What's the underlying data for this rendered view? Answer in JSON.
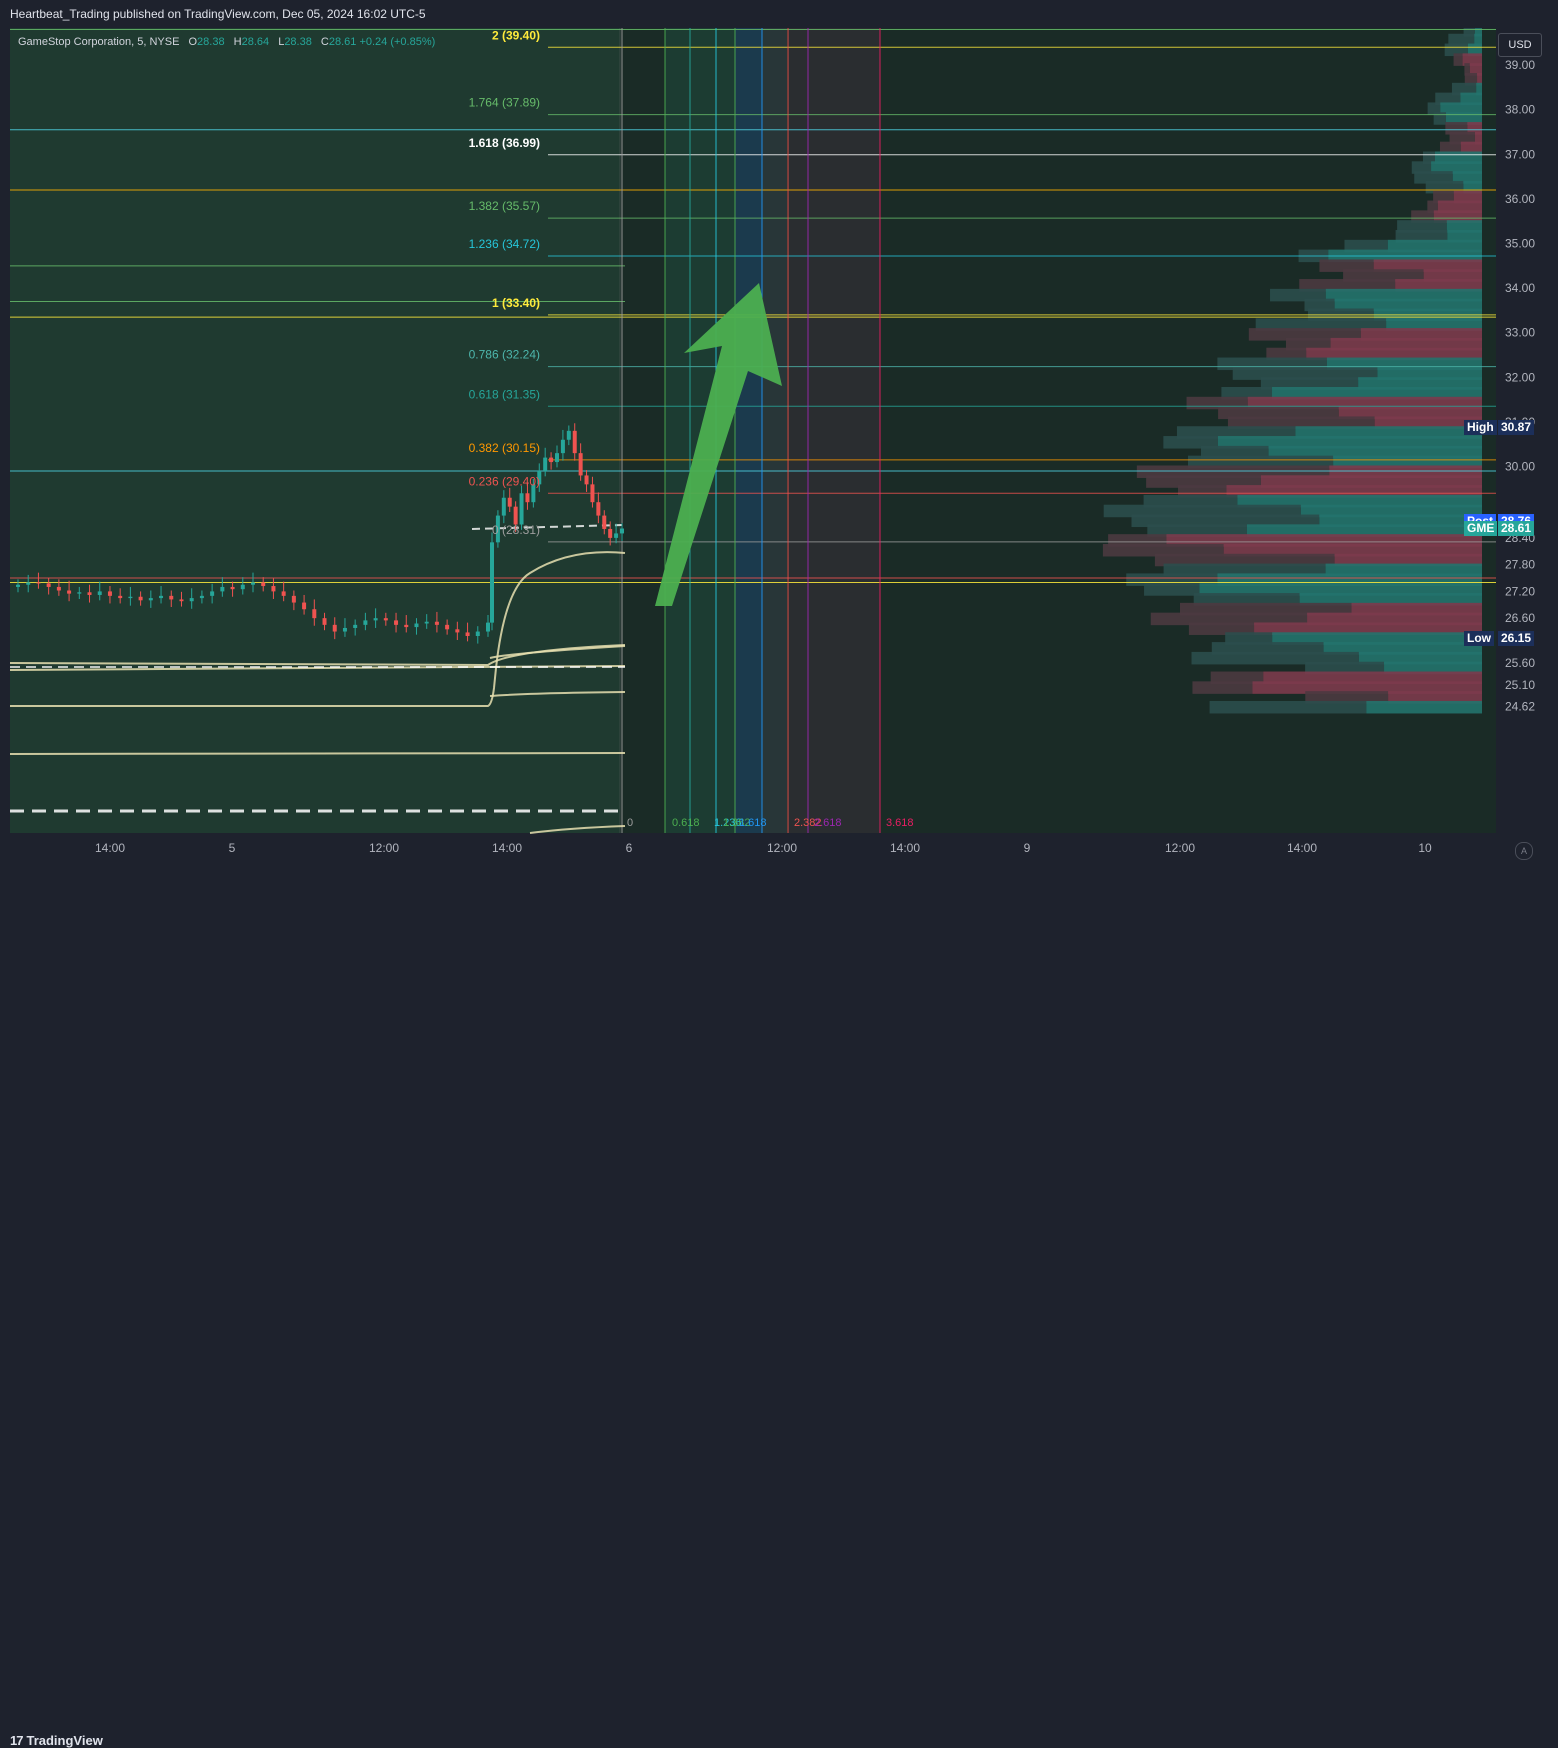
{
  "header": {
    "published": "Heartbeat_Trading published on TradingView.com, Dec 05, 2024 16:02 UTC-5"
  },
  "legend": {
    "symbol": "GameStop Corporation, 5, NYSE",
    "o_label": "O",
    "o_value": "28.38",
    "h_label": "H",
    "h_value": "28.64",
    "l_label": "L",
    "l_value": "28.38",
    "c_label": "C",
    "c_value": "28.61",
    "change": "+0.24 (+0.85%)"
  },
  "currency": "USD",
  "footer": {
    "brand": "TradingView"
  },
  "colors": {
    "background": "#1a2b26",
    "up": "#26a69a",
    "down": "#ef5350",
    "arrow": "#4caf50",
    "vwap": "#e8e0b0"
  },
  "chart_data": {
    "type": "candlestick",
    "symbol": "GME",
    "interval": "5",
    "x_ticks": [
      "14:00",
      "5",
      "12:00",
      "14:00",
      "6",
      "12:00",
      "14:00",
      "9",
      "12:00",
      "14:00",
      "10"
    ],
    "y_ticks": [
      39.0,
      38.0,
      37.0,
      36.0,
      35.0,
      34.0,
      33.0,
      32.0,
      31.0,
      30.0,
      28.4,
      27.8,
      27.2,
      26.6,
      25.6,
      25.1,
      24.62
    ],
    "ylim": [
      24.62,
      39.9
    ],
    "price_tags": [
      {
        "label": "High",
        "value": "30.87",
        "price": 30.87,
        "color": "#1c2f5a"
      },
      {
        "label": "Post",
        "value": "28.76",
        "price": 28.76,
        "color": "#2962ff"
      },
      {
        "label": "GME",
        "value": "28.61",
        "price": 28.61,
        "color": "#26a69a"
      },
      {
        "label": "Low",
        "value": "26.15",
        "price": 26.15,
        "color": "#1c2f5a"
      }
    ],
    "fib_extension": [
      {
        "text": "2 (39.40)",
        "price": 39.4,
        "color": "#ffeb3b",
        "bold": true
      },
      {
        "text": "1.764 (37.89)",
        "price": 37.89,
        "color": "#66bb6a",
        "bold": false
      },
      {
        "text": "1.618 (36.99)",
        "price": 36.99,
        "color": "#ffffff",
        "bold": true
      },
      {
        "text": "1.382 (35.57)",
        "price": 35.57,
        "color": "#66bb6a",
        "bold": false
      },
      {
        "text": "1.236 (34.72)",
        "price": 34.72,
        "color": "#26c6da",
        "bold": false
      },
      {
        "text": "1 (33.40)",
        "price": 33.4,
        "color": "#ffeb3b",
        "bold": true
      },
      {
        "text": "0.786 (32.24)",
        "price": 32.24,
        "color": "#4db6ac",
        "bold": false
      },
      {
        "text": "0.618 (31.35)",
        "price": 31.35,
        "color": "#26a69a",
        "bold": false
      },
      {
        "text": "0.382 (30.15)",
        "price": 30.15,
        "color": "#ff9800",
        "bold": false
      },
      {
        "text": "0.236 (29.40)",
        "price": 29.4,
        "color": "#ef5350",
        "bold": false
      },
      {
        "text": "0 (28.31)",
        "price": 28.31,
        "color": "#9e9e9e",
        "bold": false
      }
    ],
    "horizontal_levels": [
      {
        "price": 39.8,
        "color": "#66bb6a",
        "full": true
      },
      {
        "price": 37.55,
        "color": "#4dd0e1",
        "full": true
      },
      {
        "price": 36.2,
        "color": "#ffb300",
        "full": true
      },
      {
        "price": 34.5,
        "color": "#66bb6a",
        "full": false
      },
      {
        "price": 33.7,
        "color": "#66bb6a",
        "full": false
      },
      {
        "price": 33.35,
        "color": "#ffeb3b",
        "full": true
      },
      {
        "price": 29.9,
        "color": "#4dd0e1",
        "full": true
      },
      {
        "price": 27.5,
        "color": "#ef5350",
        "full": true
      },
      {
        "price": 27.4,
        "color": "#ffeb3b",
        "full": true
      }
    ],
    "time_fib_labels": [
      {
        "text": "0",
        "color": "#9e9e9e"
      },
      {
        "text": "0.618",
        "color": "#4caf50"
      },
      {
        "text": "1.236",
        "color": "#26c6da"
      },
      {
        "text": "1.382",
        "color": "#4caf50"
      },
      {
        "text": "1.618",
        "color": "#2196f3"
      },
      {
        "text": "2.382",
        "color": "#ef5350"
      },
      {
        "text": "2.618",
        "color": "#9c27b0"
      },
      {
        "text": "3.618",
        "color": "#e91e63"
      }
    ],
    "candles_summary": {
      "note_values": "approximate 5-minute closes read from the plot",
      "closes": [
        27.35,
        27.4,
        27.38,
        27.3,
        27.22,
        27.15,
        27.18,
        27.12,
        27.2,
        27.1,
        27.05,
        27.08,
        27.0,
        27.05,
        27.1,
        27.02,
        26.98,
        27.05,
        27.1,
        27.2,
        27.3,
        27.25,
        27.35,
        27.4,
        27.32,
        27.2,
        27.1,
        26.95,
        26.8,
        26.6,
        26.45,
        26.3,
        26.38,
        26.45,
        26.55,
        26.6,
        26.55,
        26.45,
        26.4,
        26.48,
        26.52,
        26.45,
        26.35,
        26.28,
        26.2,
        26.3,
        26.5,
        28.3,
        28.9,
        29.3,
        29.1,
        28.7,
        29.4,
        29.2,
        29.6,
        29.9,
        30.2,
        30.1,
        30.3,
        30.6,
        30.8,
        30.3,
        29.8,
        29.6,
        29.2,
        28.9,
        28.6,
        28.4,
        28.5,
        28.61
      ]
    }
  }
}
